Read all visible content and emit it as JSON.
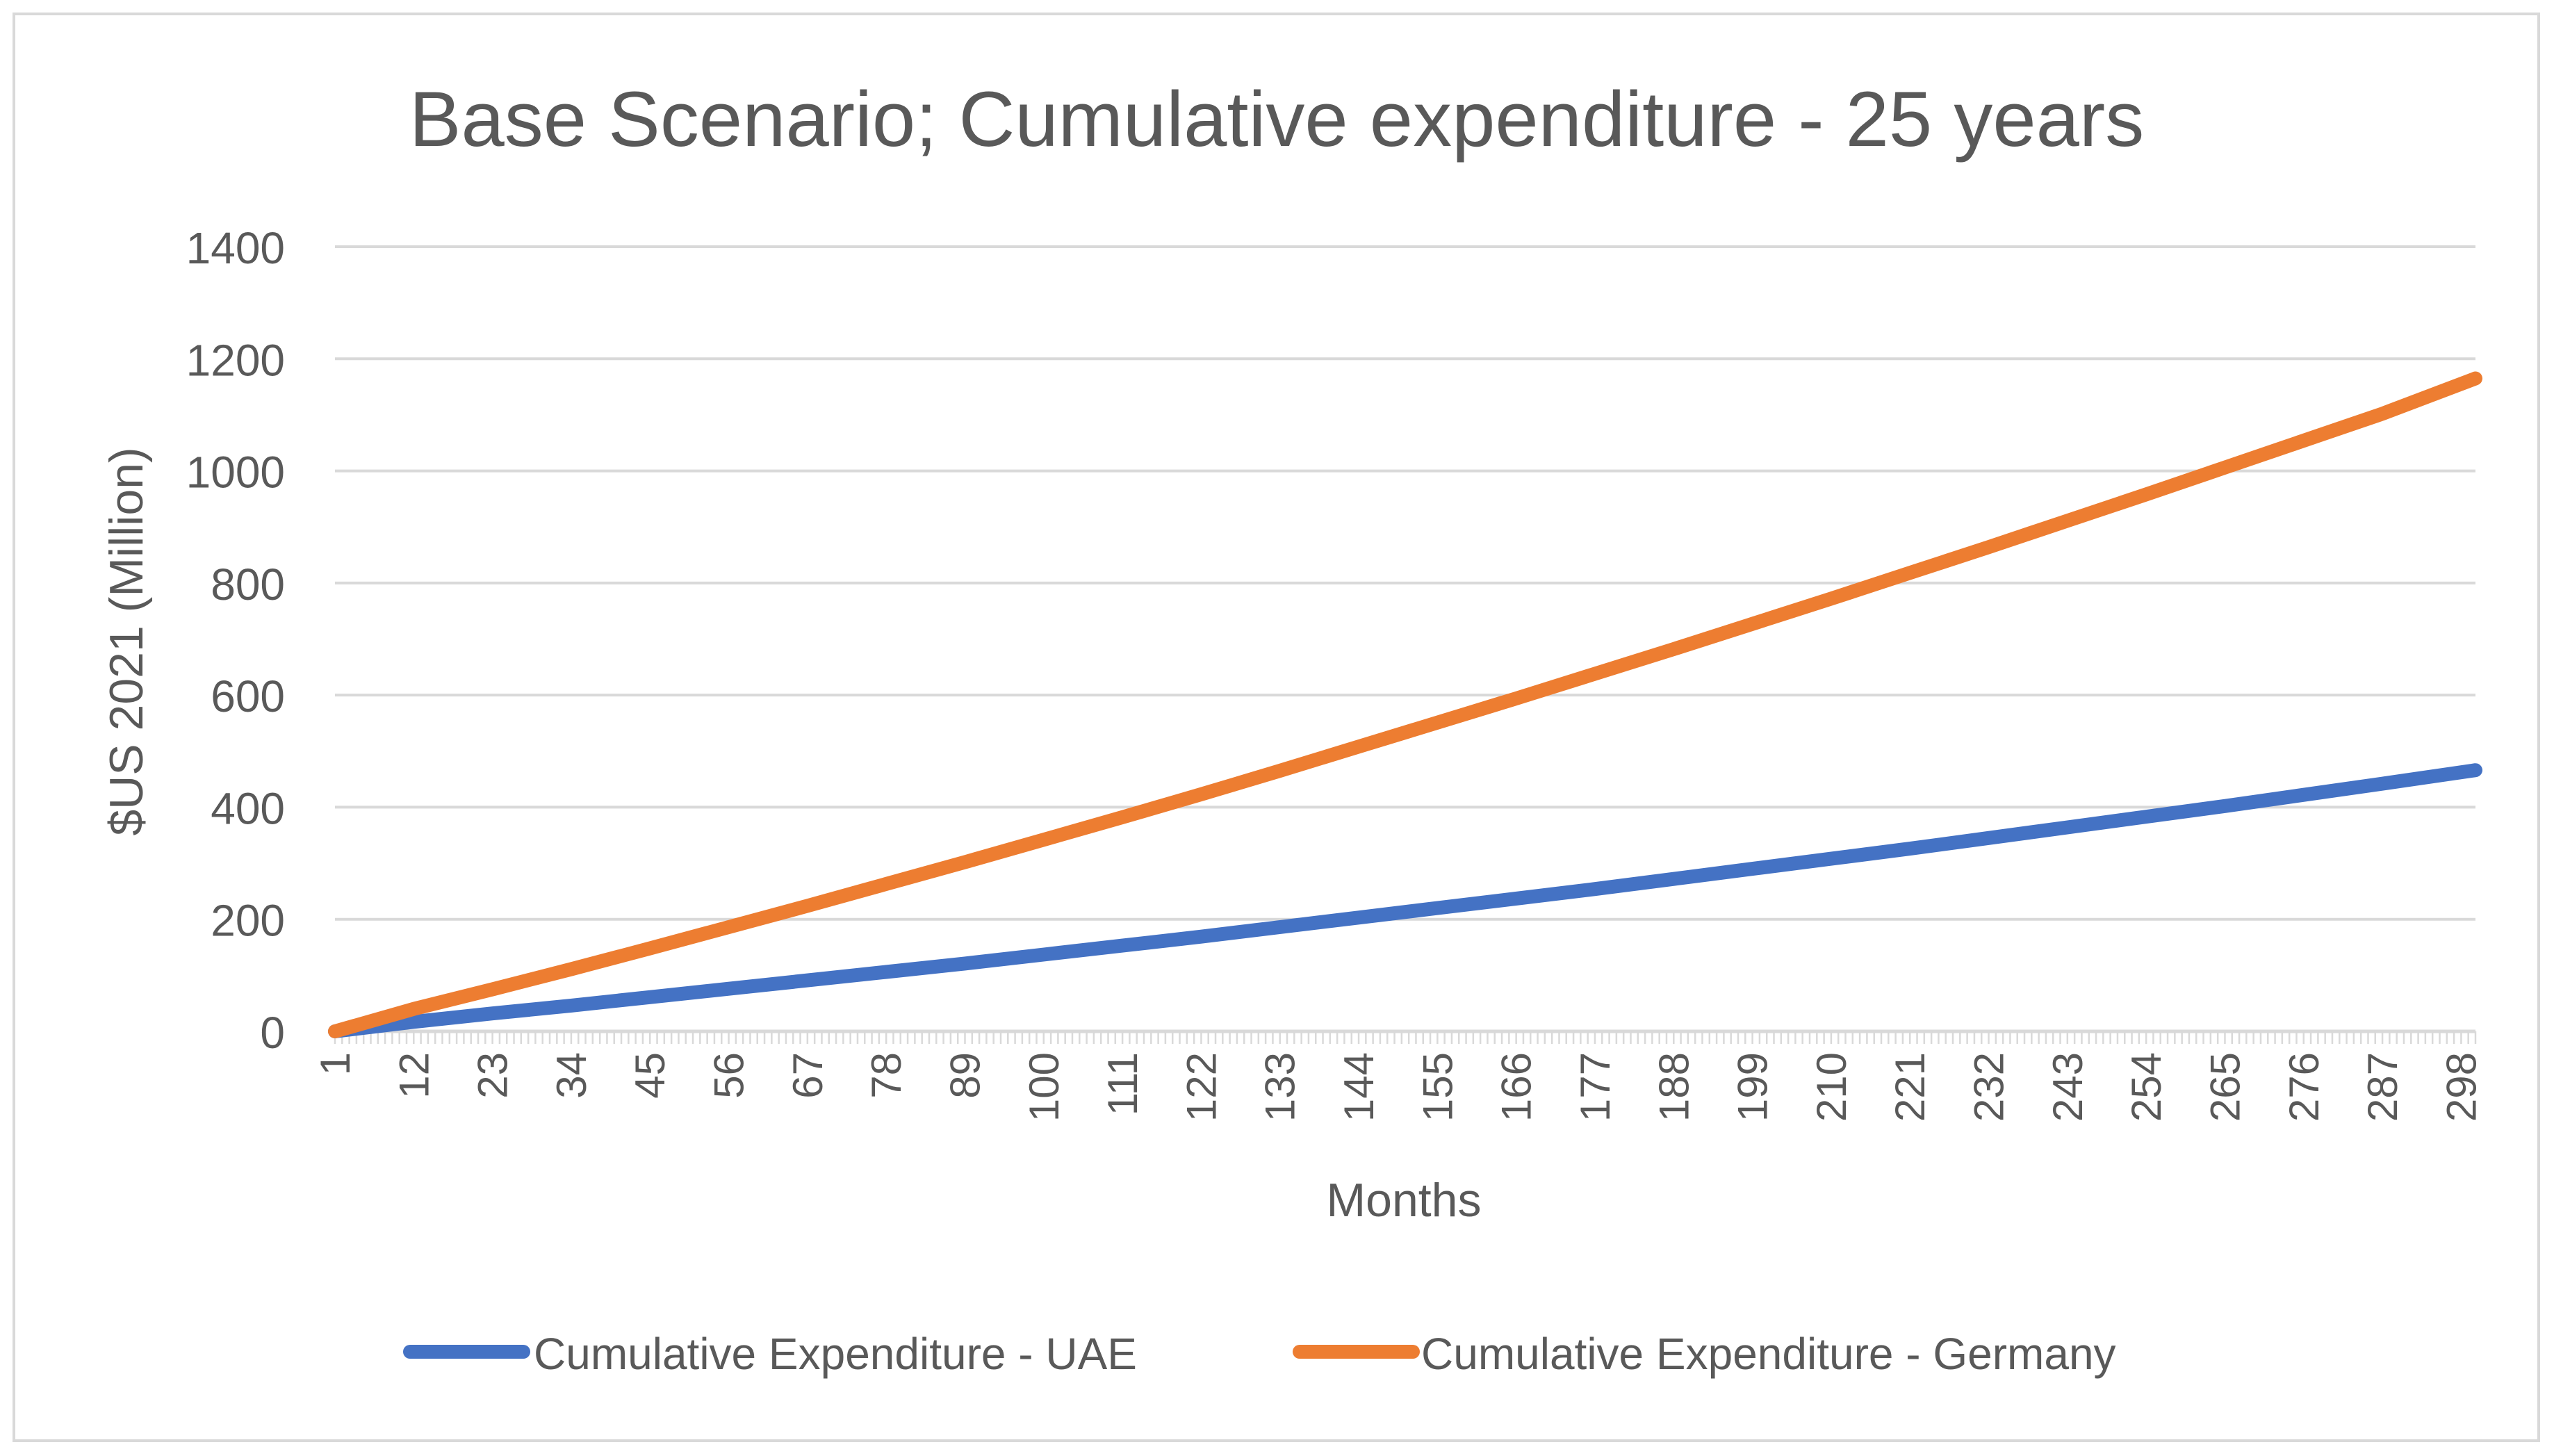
{
  "chart_data": {
    "type": "line",
    "title": "Base Scenario; Cumulative expenditure - 25 years",
    "xlabel": "Months",
    "ylabel": "$US 2021 (Million)",
    "ylim": [
      0,
      1400
    ],
    "yticks": [
      0,
      200,
      400,
      600,
      800,
      1000,
      1200,
      1400
    ],
    "xlim": [
      1,
      300
    ],
    "xticks": [
      1,
      12,
      23,
      34,
      45,
      56,
      67,
      78,
      89,
      100,
      111,
      122,
      133,
      144,
      155,
      166,
      177,
      188,
      199,
      210,
      221,
      232,
      243,
      254,
      265,
      276,
      287,
      298
    ],
    "grid": true,
    "legend_position": "bottom",
    "series": [
      {
        "name": "Cumulative Expenditure - UAE",
        "color": "#4472c4",
        "x": [
          1,
          12,
          23,
          34,
          45,
          56,
          67,
          78,
          89,
          100,
          111,
          122,
          133,
          144,
          155,
          166,
          177,
          188,
          199,
          210,
          221,
          232,
          243,
          254,
          265,
          276,
          287,
          300
        ],
        "values": [
          0,
          17,
          32,
          46,
          61,
          76,
          91,
          106,
          121,
          137,
          153,
          169,
          186,
          203,
          220,
          237,
          254,
          272,
          290,
          308,
          326,
          345,
          364,
          383,
          402,
          422,
          442,
          466
        ]
      },
      {
        "name": "Cumulative Expenditure - Germany",
        "color": "#ed7d31",
        "x": [
          1,
          12,
          23,
          34,
          45,
          56,
          67,
          78,
          89,
          100,
          111,
          122,
          133,
          144,
          155,
          166,
          177,
          188,
          199,
          210,
          221,
          232,
          243,
          254,
          265,
          276,
          287,
          300
        ],
        "values": [
          0,
          40,
          75,
          111,
          148,
          186,
          224,
          263,
          302,
          342,
          382,
          423,
          465,
          508,
          551,
          594,
          638,
          682,
          727,
          772,
          818,
          864,
          911,
          958,
          1006,
          1054,
          1102,
          1165
        ]
      }
    ]
  }
}
